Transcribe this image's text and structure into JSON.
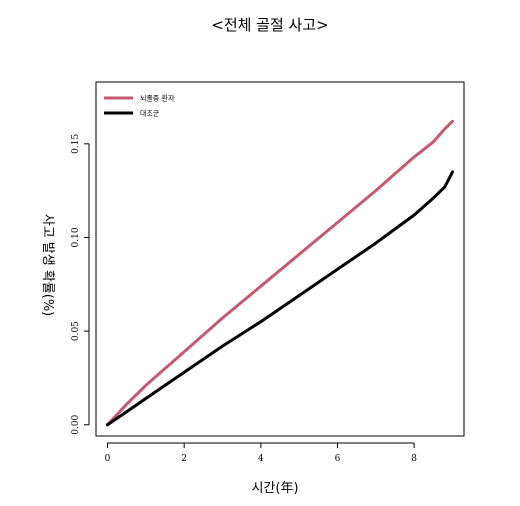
{
  "chart_data": {
    "type": "line",
    "title": "<전체 골절 사고>",
    "xlabel": "시간(年)",
    "ylabel": "사고 발생 확률(%)",
    "xlim": [
      -0.3,
      9.3
    ],
    "ylim": [
      -0.006,
      0.183
    ],
    "xticks": [
      0,
      2,
      4,
      6,
      8
    ],
    "xtick_labels": [
      "0",
      "2",
      "4",
      "6",
      "8"
    ],
    "yticks": [
      0.0,
      0.05,
      0.1,
      0.15
    ],
    "ytick_labels": [
      "0.00",
      "0.05",
      "0.10",
      "0.15"
    ],
    "grid": false,
    "legend_position": "top-left",
    "series": [
      {
        "name": "뇌졸중 환자",
        "color": "#c55a6e",
        "x": [
          0,
          0.5,
          1,
          2,
          3,
          4,
          5,
          6,
          7,
          8,
          8.5,
          8.8,
          9.0
        ],
        "y": [
          0.0,
          0.011,
          0.021,
          0.039,
          0.057,
          0.074,
          0.091,
          0.108,
          0.125,
          0.143,
          0.151,
          0.158,
          0.162
        ]
      },
      {
        "name": "대조군",
        "color": "#000000",
        "x": [
          0,
          0.5,
          1,
          2,
          3,
          4,
          5,
          6,
          7,
          8,
          8.5,
          8.8,
          8.95,
          9.0
        ],
        "y": [
          0.0,
          0.007,
          0.014,
          0.028,
          0.042,
          0.055,
          0.069,
          0.083,
          0.097,
          0.112,
          0.121,
          0.127,
          0.133,
          0.135
        ]
      }
    ]
  }
}
